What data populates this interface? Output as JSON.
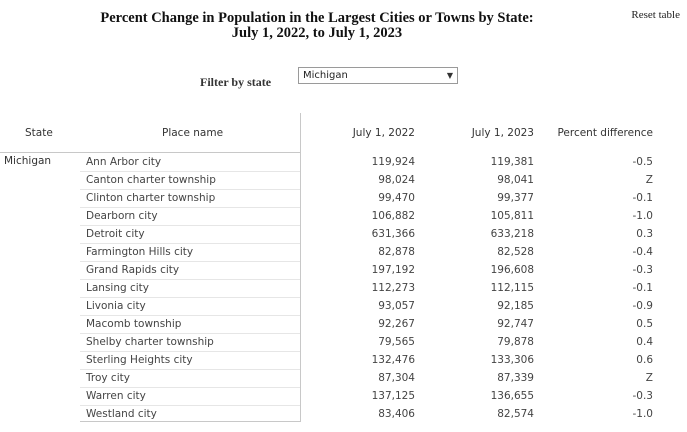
{
  "title": {
    "line1": "Percent Change in Population in the Largest Cities or Towns by State:",
    "line2": "July 1, 2022, to July 1, 2023"
  },
  "reset_label": "Reset table",
  "filter": {
    "label": "Filter by state",
    "selected": "Michigan",
    "caret_icon": "triangle-down-icon"
  },
  "table": {
    "headers": {
      "state": "State",
      "place": "Place name",
      "y2022": "July 1, 2022",
      "y2023": "July 1, 2023",
      "pct": "Percent difference"
    },
    "state": "Michigan",
    "rows": [
      {
        "place": "Ann Arbor city",
        "y2022": "119,924",
        "y2023": "119,381",
        "pct": "-0.5"
      },
      {
        "place": "Canton charter township",
        "y2022": "98,024",
        "y2023": "98,041",
        "pct": "Z"
      },
      {
        "place": "Clinton charter township",
        "y2022": "99,470",
        "y2023": "99,377",
        "pct": "-0.1"
      },
      {
        "place": "Dearborn city",
        "y2022": "106,882",
        "y2023": "105,811",
        "pct": "-1.0"
      },
      {
        "place": "Detroit city",
        "y2022": "631,366",
        "y2023": "633,218",
        "pct": "0.3"
      },
      {
        "place": "Farmington Hills city",
        "y2022": "82,878",
        "y2023": "82,528",
        "pct": "-0.4"
      },
      {
        "place": "Grand Rapids city",
        "y2022": "197,192",
        "y2023": "196,608",
        "pct": "-0.3"
      },
      {
        "place": "Lansing city",
        "y2022": "112,273",
        "y2023": "112,115",
        "pct": "-0.1"
      },
      {
        "place": "Livonia city",
        "y2022": "93,057",
        "y2023": "92,185",
        "pct": "-0.9"
      },
      {
        "place": "Macomb township",
        "y2022": "92,267",
        "y2023": "92,747",
        "pct": "0.5"
      },
      {
        "place": "Shelby charter township",
        "y2022": "79,565",
        "y2023": "79,878",
        "pct": "0.4"
      },
      {
        "place": "Sterling Heights city",
        "y2022": "132,476",
        "y2023": "133,306",
        "pct": "0.6"
      },
      {
        "place": "Troy city",
        "y2022": "87,304",
        "y2023": "87,339",
        "pct": "Z"
      },
      {
        "place": "Warren city",
        "y2022": "137,125",
        "y2023": "136,655",
        "pct": "-0.3"
      },
      {
        "place": "Westland city",
        "y2022": "83,406",
        "y2023": "82,574",
        "pct": "-1.0"
      }
    ]
  }
}
